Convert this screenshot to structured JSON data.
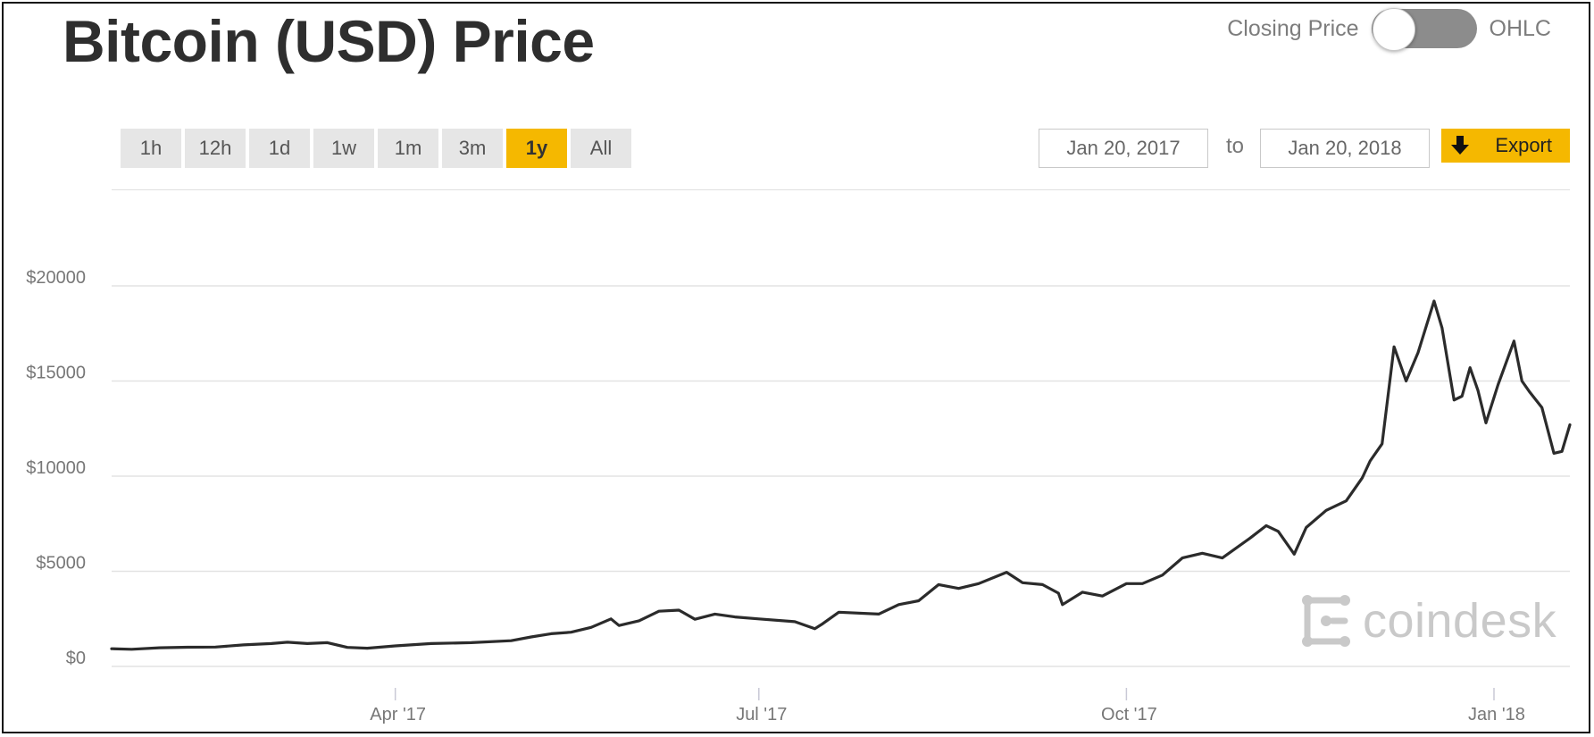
{
  "header": {
    "title": "Bitcoin (USD) Price",
    "toggle_left": "Closing Price",
    "toggle_right": "OHLC"
  },
  "controls": {
    "ranges": [
      "1h",
      "12h",
      "1d",
      "1w",
      "1m",
      "3m",
      "1y",
      "All"
    ],
    "active_range": "1y",
    "from_date": "Jan 20, 2017",
    "to_label": "to",
    "to_date": "Jan 20, 2018",
    "export_label": "Export"
  },
  "branding": {
    "logo_text": "coindesk"
  },
  "colors": {
    "accent": "#f5b800",
    "line": "#2b2b2b",
    "grid": "#e3e3e3"
  },
  "chart_data": {
    "type": "line",
    "title": "",
    "xlabel": "",
    "ylabel": "",
    "y_ticks": [
      0,
      5000,
      10000,
      15000,
      20000
    ],
    "y_tick_labels": [
      "$0",
      "$5000",
      "$10000",
      "$15000",
      "$20000"
    ],
    "ylim": [
      0,
      20000
    ],
    "x_ticks": [
      "2017-04-01",
      "2017-07-01",
      "2017-10-01",
      "2018-01-01"
    ],
    "x_tick_labels": [
      "Apr '17",
      "Jul '17",
      "Oct '17",
      "Jan '18"
    ],
    "xlim": [
      "2017-01-20",
      "2018-01-20"
    ],
    "grid": true,
    "legend": "none",
    "series": [
      {
        "x": [
          "2017-01-20",
          "2017-01-25",
          "2017-02-01",
          "2017-02-08",
          "2017-02-15",
          "2017-02-22",
          "2017-03-01",
          "2017-03-05",
          "2017-03-10",
          "2017-03-15",
          "2017-03-20",
          "2017-03-25",
          "2017-04-01",
          "2017-04-10",
          "2017-04-20",
          "2017-04-30",
          "2017-05-05",
          "2017-05-10",
          "2017-05-15",
          "2017-05-20",
          "2017-05-25",
          "2017-05-27",
          "2017-06-01",
          "2017-06-06",
          "2017-06-11",
          "2017-06-15",
          "2017-06-20",
          "2017-06-25",
          "2017-07-01",
          "2017-07-10",
          "2017-07-15",
          "2017-07-17",
          "2017-07-21",
          "2017-07-31",
          "2017-08-05",
          "2017-08-10",
          "2017-08-15",
          "2017-08-20",
          "2017-08-25",
          "2017-09-01",
          "2017-09-05",
          "2017-09-10",
          "2017-09-14",
          "2017-09-15",
          "2017-09-20",
          "2017-09-25",
          "2017-10-01",
          "2017-10-05",
          "2017-10-10",
          "2017-10-15",
          "2017-10-20",
          "2017-10-25",
          "2017-11-01",
          "2017-11-05",
          "2017-11-08",
          "2017-11-12",
          "2017-11-15",
          "2017-11-20",
          "2017-11-25",
          "2017-11-29",
          "2017-12-01",
          "2017-12-04",
          "2017-12-07",
          "2017-12-08",
          "2017-12-10",
          "2017-12-13",
          "2017-12-17",
          "2017-12-19",
          "2017-12-22",
          "2017-12-24",
          "2017-12-26",
          "2017-12-28",
          "2017-12-30",
          "2018-01-02",
          "2018-01-06",
          "2018-01-08",
          "2018-01-10",
          "2018-01-13",
          "2018-01-16",
          "2018-01-18",
          "2018-01-20"
        ],
        "values": [
          930,
          900,
          980,
          1010,
          1020,
          1130,
          1200,
          1270,
          1200,
          1250,
          1000,
          960,
          1080,
          1200,
          1250,
          1350,
          1550,
          1720,
          1800,
          2050,
          2500,
          2150,
          2400,
          2900,
          2960,
          2480,
          2750,
          2600,
          2500,
          2350,
          1980,
          2250,
          2850,
          2750,
          3250,
          3450,
          4300,
          4100,
          4350,
          4950,
          4400,
          4300,
          3850,
          3250,
          3900,
          3700,
          4350,
          4350,
          4800,
          5700,
          5950,
          5700,
          6750,
          7400,
          7100,
          5900,
          7300,
          8200,
          8700,
          9900,
          10800,
          11700,
          16800,
          16200,
          15000,
          16500,
          19200,
          17800,
          14000,
          14200,
          15700,
          14500,
          12800,
          14800,
          17100,
          15000,
          14400,
          13600,
          11200,
          11300,
          12700
        ]
      }
    ]
  }
}
